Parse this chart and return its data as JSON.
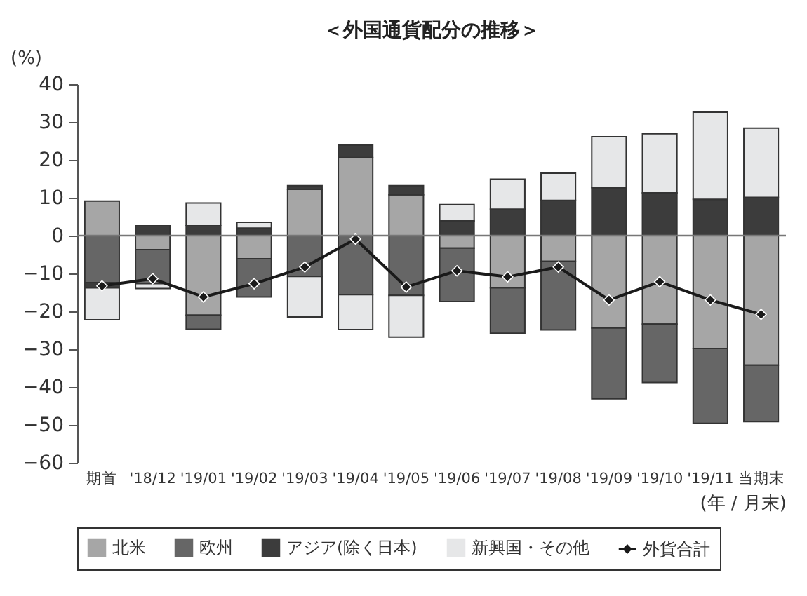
{
  "chart_data": {
    "type": "bar",
    "stacked": true,
    "title": "＜外国通貨配分の推移＞",
    "ylabel": "(%)",
    "xlabel": "(年 / 月末)",
    "categories": [
      "期首",
      "'18/12",
      "'19/01",
      "'19/02",
      "'19/03",
      "'19/04",
      "'19/05",
      "'19/06",
      "'19/07",
      "'19/08",
      "'19/09",
      "'19/10",
      "'19/11",
      "当期末"
    ],
    "series": [
      {
        "name": "北米",
        "color": "#a6a6a6",
        "values": [
          9.1,
          -3.7,
          -21.0,
          -6.1,
          12.2,
          20.6,
          10.8,
          -3.3,
          -13.8,
          -6.8,
          -24.4,
          -23.4,
          -29.8,
          -34.2
        ]
      },
      {
        "name": "欧州",
        "color": "#666666",
        "values": [
          -12.4,
          -9.0,
          -3.7,
          -10.1,
          -10.8,
          -15.6,
          -15.8,
          -14.1,
          -12.0,
          -18.1,
          -18.7,
          -15.4,
          -19.8,
          -14.9
        ]
      },
      {
        "name": "アジア(除く日本)",
        "color": "#3c3c3c",
        "values": [
          -1.4,
          2.6,
          2.6,
          2.0,
          1.0,
          3.3,
          2.4,
          3.9,
          7.0,
          9.3,
          12.7,
          11.3,
          9.6,
          10.1
        ]
      },
      {
        "name": "新興国・その他",
        "color": "#e6e7e8",
        "values": [
          -8.4,
          -1.3,
          6.0,
          1.5,
          -10.7,
          -9.2,
          -11.0,
          4.3,
          7.9,
          7.2,
          13.4,
          15.6,
          23.0,
          18.3
        ]
      },
      {
        "name": "外貨合計",
        "type": "line",
        "color": "#1a1a1a",
        "marker": "diamond",
        "values": [
          -13.3,
          -11.4,
          -16.2,
          -12.7,
          -8.3,
          -0.9,
          -13.6,
          -9.3,
          -10.9,
          -8.3,
          -17.0,
          -12.2,
          -17.0,
          -20.8
        ]
      }
    ],
    "ylim": [
      -60,
      40
    ],
    "yticks": [
      -60,
      -50,
      -40,
      -30,
      -20,
      -10,
      0,
      10,
      20,
      30,
      40
    ],
    "ref_lines": [
      {
        "axis": "y",
        "value": 0,
        "color": "#777777"
      }
    ],
    "grid": false,
    "legend": "bottom"
  }
}
